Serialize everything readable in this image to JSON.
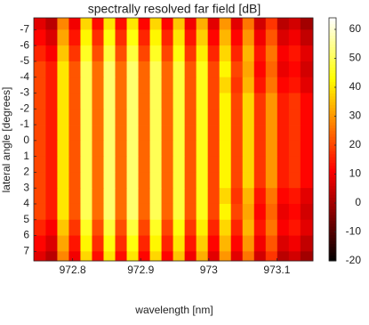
{
  "chart_data": {
    "type": "heatmap",
    "title": "spectrally resolved far field [dB]",
    "x_label": "wavelength [nm]",
    "y_label": "lateral angle [degrees]",
    "colormap": "hot",
    "x": [
      972.752,
      972.769,
      972.786,
      972.803,
      972.82,
      972.837,
      972.854,
      972.871,
      972.888,
      972.905,
      972.922,
      972.939,
      972.956,
      972.973,
      972.99,
      973.007,
      973.024,
      973.041,
      973.058,
      973.075,
      973.092,
      973.109,
      973.126,
      973.143
    ],
    "y": [
      -7.5,
      -6.5,
      -5.5,
      -4.5,
      -3.5,
      -2.5,
      -1.5,
      -0.5,
      0.5,
      1.5,
      2.5,
      3.5,
      4.5,
      5.5,
      6.5,
      7.5
    ],
    "z": [
      [
        8,
        3,
        28,
        10,
        38,
        13,
        40,
        13,
        40,
        12,
        38,
        12,
        36,
        10,
        33,
        8,
        30,
        8,
        26,
        6,
        18,
        3,
        6,
        0
      ],
      [
        12,
        7,
        32,
        14,
        42,
        17,
        44,
        17,
        44,
        16,
        42,
        16,
        40,
        14,
        37,
        12,
        34,
        12,
        30,
        10,
        22,
        7,
        10,
        4
      ],
      [
        16,
        11,
        36,
        18,
        46,
        21,
        48,
        21,
        48,
        20,
        46,
        20,
        44,
        18,
        41,
        16,
        38,
        16,
        34,
        14,
        26,
        11,
        14,
        8
      ],
      [
        20,
        15,
        40,
        22,
        50,
        25,
        52,
        25,
        52,
        24,
        50,
        24,
        48,
        22,
        45,
        20,
        42,
        20,
        32,
        12,
        24,
        9,
        12,
        6
      ],
      [
        20,
        15,
        40,
        22,
        50,
        25,
        52,
        25,
        52,
        24,
        50,
        24,
        48,
        22,
        45,
        20,
        38,
        18,
        34,
        14,
        26,
        12,
        14,
        8
      ],
      [
        20,
        15,
        40,
        22,
        50,
        25,
        52,
        25,
        52,
        24,
        50,
        24,
        48,
        22,
        45,
        20,
        42,
        20,
        38,
        18,
        30,
        15,
        18,
        12
      ],
      [
        20,
        15,
        40,
        22,
        50,
        25,
        52,
        25,
        52,
        24,
        50,
        24,
        48,
        22,
        45,
        20,
        42,
        20,
        38,
        18,
        30,
        15,
        18,
        12
      ],
      [
        20,
        15,
        40,
        22,
        50,
        25,
        52,
        25,
        52,
        24,
        50,
        24,
        48,
        22,
        45,
        20,
        42,
        20,
        38,
        18,
        30,
        15,
        18,
        12
      ],
      [
        20,
        15,
        40,
        22,
        50,
        25,
        52,
        25,
        52,
        24,
        50,
        24,
        48,
        22,
        45,
        20,
        42,
        20,
        38,
        18,
        30,
        15,
        18,
        12
      ],
      [
        20,
        15,
        40,
        22,
        50,
        25,
        52,
        25,
        52,
        24,
        50,
        24,
        48,
        22,
        45,
        20,
        42,
        20,
        38,
        18,
        30,
        15,
        18,
        12
      ],
      [
        20,
        15,
        40,
        22,
        50,
        25,
        52,
        25,
        52,
        24,
        50,
        24,
        48,
        22,
        45,
        20,
        42,
        20,
        38,
        18,
        30,
        15,
        18,
        12
      ],
      [
        20,
        15,
        40,
        22,
        50,
        25,
        52,
        25,
        52,
        24,
        50,
        24,
        48,
        22,
        45,
        20,
        38,
        18,
        34,
        14,
        26,
        12,
        14,
        8
      ],
      [
        20,
        15,
        40,
        22,
        50,
        25,
        52,
        25,
        52,
        24,
        50,
        24,
        48,
        22,
        45,
        20,
        42,
        20,
        32,
        12,
        24,
        9,
        12,
        6
      ],
      [
        16,
        11,
        36,
        18,
        46,
        21,
        48,
        21,
        48,
        20,
        46,
        20,
        44,
        18,
        41,
        16,
        38,
        16,
        34,
        14,
        26,
        11,
        14,
        8
      ],
      [
        12,
        7,
        32,
        14,
        42,
        17,
        44,
        17,
        44,
        16,
        42,
        16,
        40,
        14,
        37,
        12,
        34,
        12,
        30,
        10,
        22,
        7,
        10,
        4
      ],
      [
        8,
        3,
        28,
        10,
        38,
        13,
        40,
        13,
        40,
        12,
        38,
        12,
        36,
        10,
        33,
        8,
        30,
        8,
        26,
        6,
        18,
        3,
        6,
        0
      ]
    ],
    "xlim": [
      972.743,
      973.153
    ],
    "xticks": [
      972.8,
      972.9,
      973,
      973.1
    ],
    "ylim": [
      -7.75,
      7.6
    ],
    "yticks": [
      -7,
      -6,
      -5,
      -4,
      -3,
      -2,
      -1,
      0,
      1,
      2,
      3,
      4,
      5,
      6,
      7
    ],
    "clim": [
      -20,
      64
    ],
    "cticks": [
      -20,
      -10,
      0,
      10,
      20,
      30,
      40,
      50,
      60
    ]
  }
}
